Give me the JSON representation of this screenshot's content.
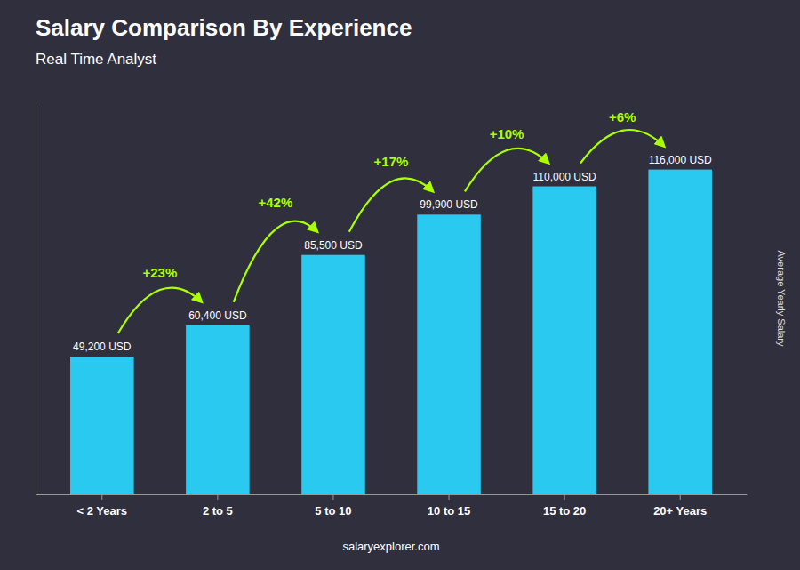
{
  "chart_data": {
    "type": "bar",
    "title": "Salary Comparison By Experience",
    "subtitle": "Real Time Analyst",
    "ylabel": "Average Yearly Salary",
    "footer": "salaryexplorer.com",
    "categories": [
      "< 2 Years",
      "2 to 5",
      "5 to 10",
      "10 to 15",
      "15 to 20",
      "20+ Years"
    ],
    "values": [
      49200,
      60400,
      85500,
      99900,
      110000,
      116000
    ],
    "value_labels": [
      "49,200 USD",
      "60,400 USD",
      "85,500 USD",
      "99,900 USD",
      "110,000 USD",
      "116,000 USD"
    ],
    "data_labels": true,
    "color": "#29c9f0",
    "annotations": [
      {
        "text": "+23%",
        "color": "#aaff00"
      },
      {
        "text": "+42%",
        "color": "#aaff00"
      },
      {
        "text": "+17%",
        "color": "#aaff00"
      },
      {
        "text": "+10%",
        "color": "#aaff00"
      },
      {
        "text": "+6%",
        "color": "#aaff00"
      }
    ],
    "ylim": [
      0,
      140000
    ],
    "tick_labels": "x",
    "grid": false
  }
}
